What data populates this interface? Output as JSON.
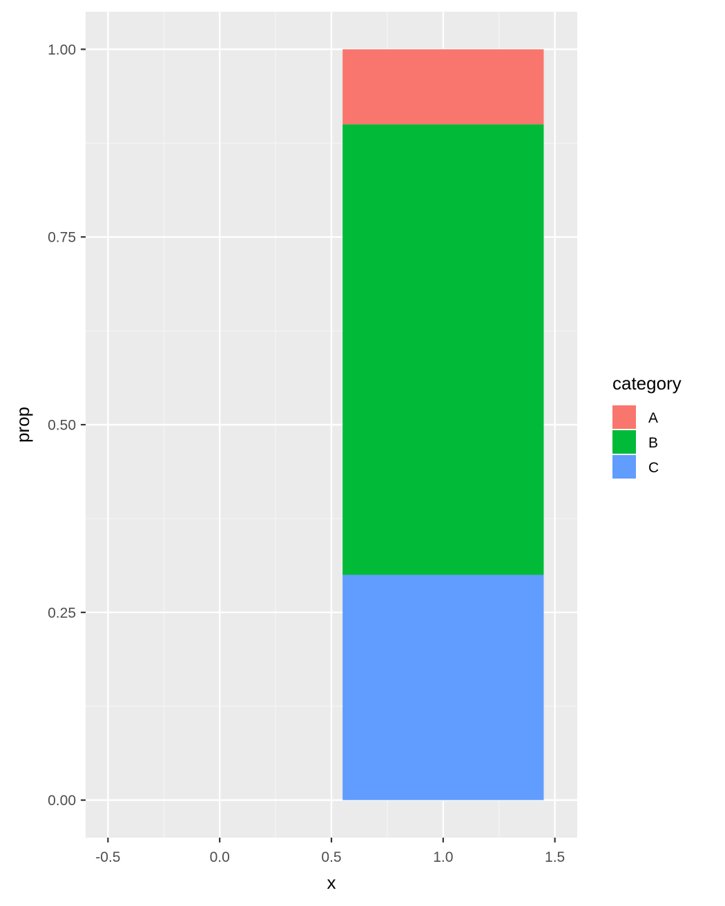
{
  "chart_data": {
    "type": "bar",
    "stacked": true,
    "position": "fill",
    "x": [
      1.0
    ],
    "bar_width": 0.9,
    "series": [
      {
        "name": "A",
        "values": [
          0.1
        ],
        "color": "#F8766D"
      },
      {
        "name": "B",
        "values": [
          0.6
        ],
        "color": "#00BA38"
      },
      {
        "name": "C",
        "values": [
          0.3
        ],
        "color": "#619CFF"
      }
    ],
    "stack_order_bottom_to_top": [
      "C",
      "B",
      "A"
    ],
    "xlabel": "x",
    "ylabel": "prop",
    "xlim": [
      -0.6,
      1.6
    ],
    "ylim": [
      -0.05,
      1.05
    ],
    "xticks": [
      -0.5,
      0.0,
      0.5,
      1.0,
      1.5
    ],
    "xtick_labels": [
      "-0.5",
      "0.0",
      "0.5",
      "1.0",
      "1.5"
    ],
    "yticks": [
      0.0,
      0.25,
      0.5,
      0.75,
      1.0
    ],
    "ytick_labels": [
      "0.00",
      "0.25",
      "0.50",
      "0.75",
      "1.00"
    ],
    "grid": true,
    "legend": {
      "title": "category",
      "placement": "right",
      "entries": [
        "A",
        "B",
        "C"
      ]
    },
    "colors": {
      "panel_background": "#EBEBEB",
      "grid_major": "#FFFFFF",
      "grid_minor": "#F5F5F5",
      "tick_mark": "#333333"
    }
  }
}
